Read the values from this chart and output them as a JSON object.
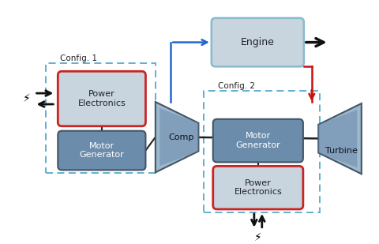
{
  "bg_color": "#ffffff",
  "box_fill_pe": "#c8d4de",
  "box_fill_mg": "#6b8caa",
  "box_fill_engine": "#c8d4de",
  "box_stroke_red": "#cc2222",
  "box_stroke_blue_light": "#88bbcc",
  "box_stroke_mg": "#445566",
  "dashed_box_color": "#55aacc",
  "arrow_black": "#111111",
  "arrow_blue": "#2266cc",
  "arrow_red": "#cc1111",
  "config1_label": "Config. 1",
  "config2_label": "Config. 2",
  "power_electronics_label": "Power\nElectronics",
  "motor_generator_label": "Motor\nGenerator",
  "comp_label": "Comp",
  "turbine_label": "Turbine",
  "engine_label": "Engine",
  "trap_fill_light": "#9db8cc",
  "trap_fill_dark": "#6688aa",
  "trap_edge": "#445566"
}
